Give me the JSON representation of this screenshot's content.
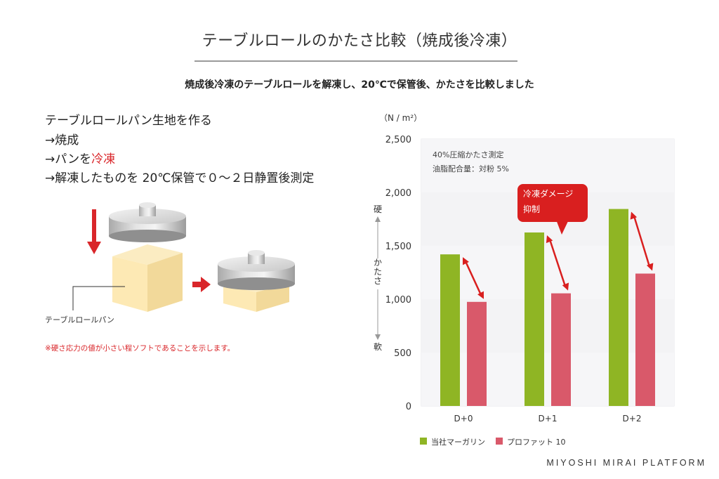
{
  "header": {
    "title": "テーブルロールのかたさ比較（焼成後冷凍）",
    "subtitle": "焼成後冷凍のテーブルロールを解凍し、20℃で保管後、かたさを比較しました"
  },
  "process": {
    "step1": "テーブルロールパン生地を作る",
    "step2": "→焼成",
    "step3_prefix": "→パンを",
    "step3_highlight": "冷凍",
    "step4": "→解凍したものを 20℃保管で０〜２日静置後測定",
    "bread_label": "テーブルロールパン",
    "note": "※硬さ応力の値が小さい程ソフトであることを示します。"
  },
  "brand": "MIYOSHI MIRAI PLATFORM",
  "colors": {
    "green": "#8fb524",
    "pink": "#d9596a",
    "red_accent": "#d9262a",
    "plot_bg": "#f3f3f5"
  },
  "chart_data": {
    "type": "bar",
    "unit_label": "（N / m²）",
    "categories": [
      "D+0",
      "D+1",
      "D+2"
    ],
    "series": [
      {
        "name": "当社マーガリン",
        "values": [
          1420,
          1625,
          1845
        ]
      },
      {
        "name": "プロファット 10",
        "values": [
          975,
          1055,
          1240
        ]
      }
    ],
    "ylim": [
      0,
      2500
    ],
    "yticks": [
      0,
      500,
      1000,
      1500,
      2000,
      2500
    ],
    "ytick_labels": [
      "0",
      "500",
      "1,000",
      "1,500",
      "2,000",
      "2,500"
    ],
    "axis_side_labels": {
      "top": "硬",
      "middle": "かたさ",
      "bottom": "軟"
    },
    "annotations": {
      "condition1": "40%圧縮かたさ測定",
      "condition2": "油脂配合量：対粉 5%",
      "callout_line1": "冷凍ダメージ",
      "callout_line2": "抑制"
    },
    "legend_position": "bottom-left",
    "grid": "alternating bands"
  }
}
